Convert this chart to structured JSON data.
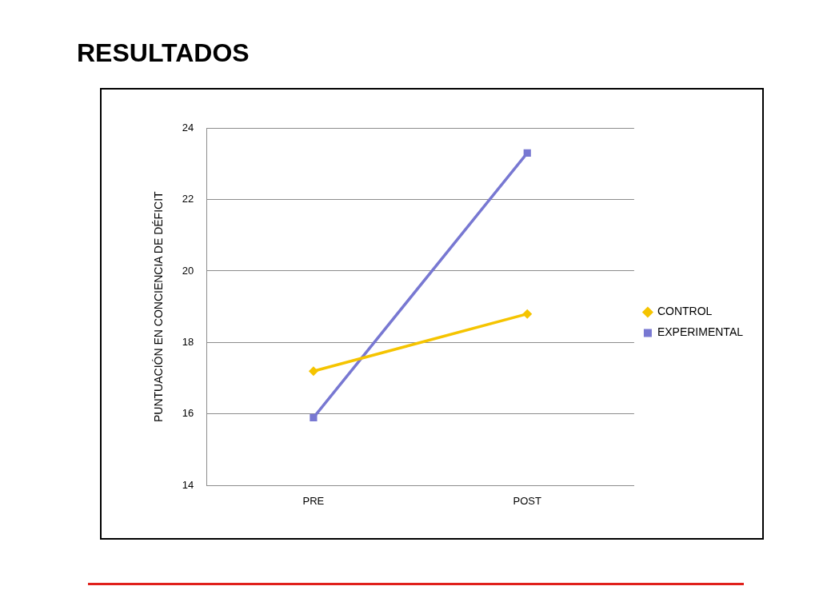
{
  "chart_data": {
    "type": "line",
    "title": "RESULTADOS",
    "ylabel": "PUNTUACIÓN EN CONCIENCIA DE DÉFICIT",
    "categories": [
      "PRE",
      "POST"
    ],
    "series": [
      {
        "name": "CONTROL",
        "color": "#f5c400",
        "marker": "diamond",
        "values": [
          17.2,
          18.8
        ]
      },
      {
        "name": "EXPERIMENTAL",
        "color": "#7878d2",
        "marker": "square",
        "values": [
          15.9,
          23.3
        ]
      }
    ],
    "ylim": [
      14,
      24
    ],
    "yticks": [
      14,
      16,
      18,
      20,
      22,
      24
    ],
    "grid": "y",
    "legend": "right"
  }
}
